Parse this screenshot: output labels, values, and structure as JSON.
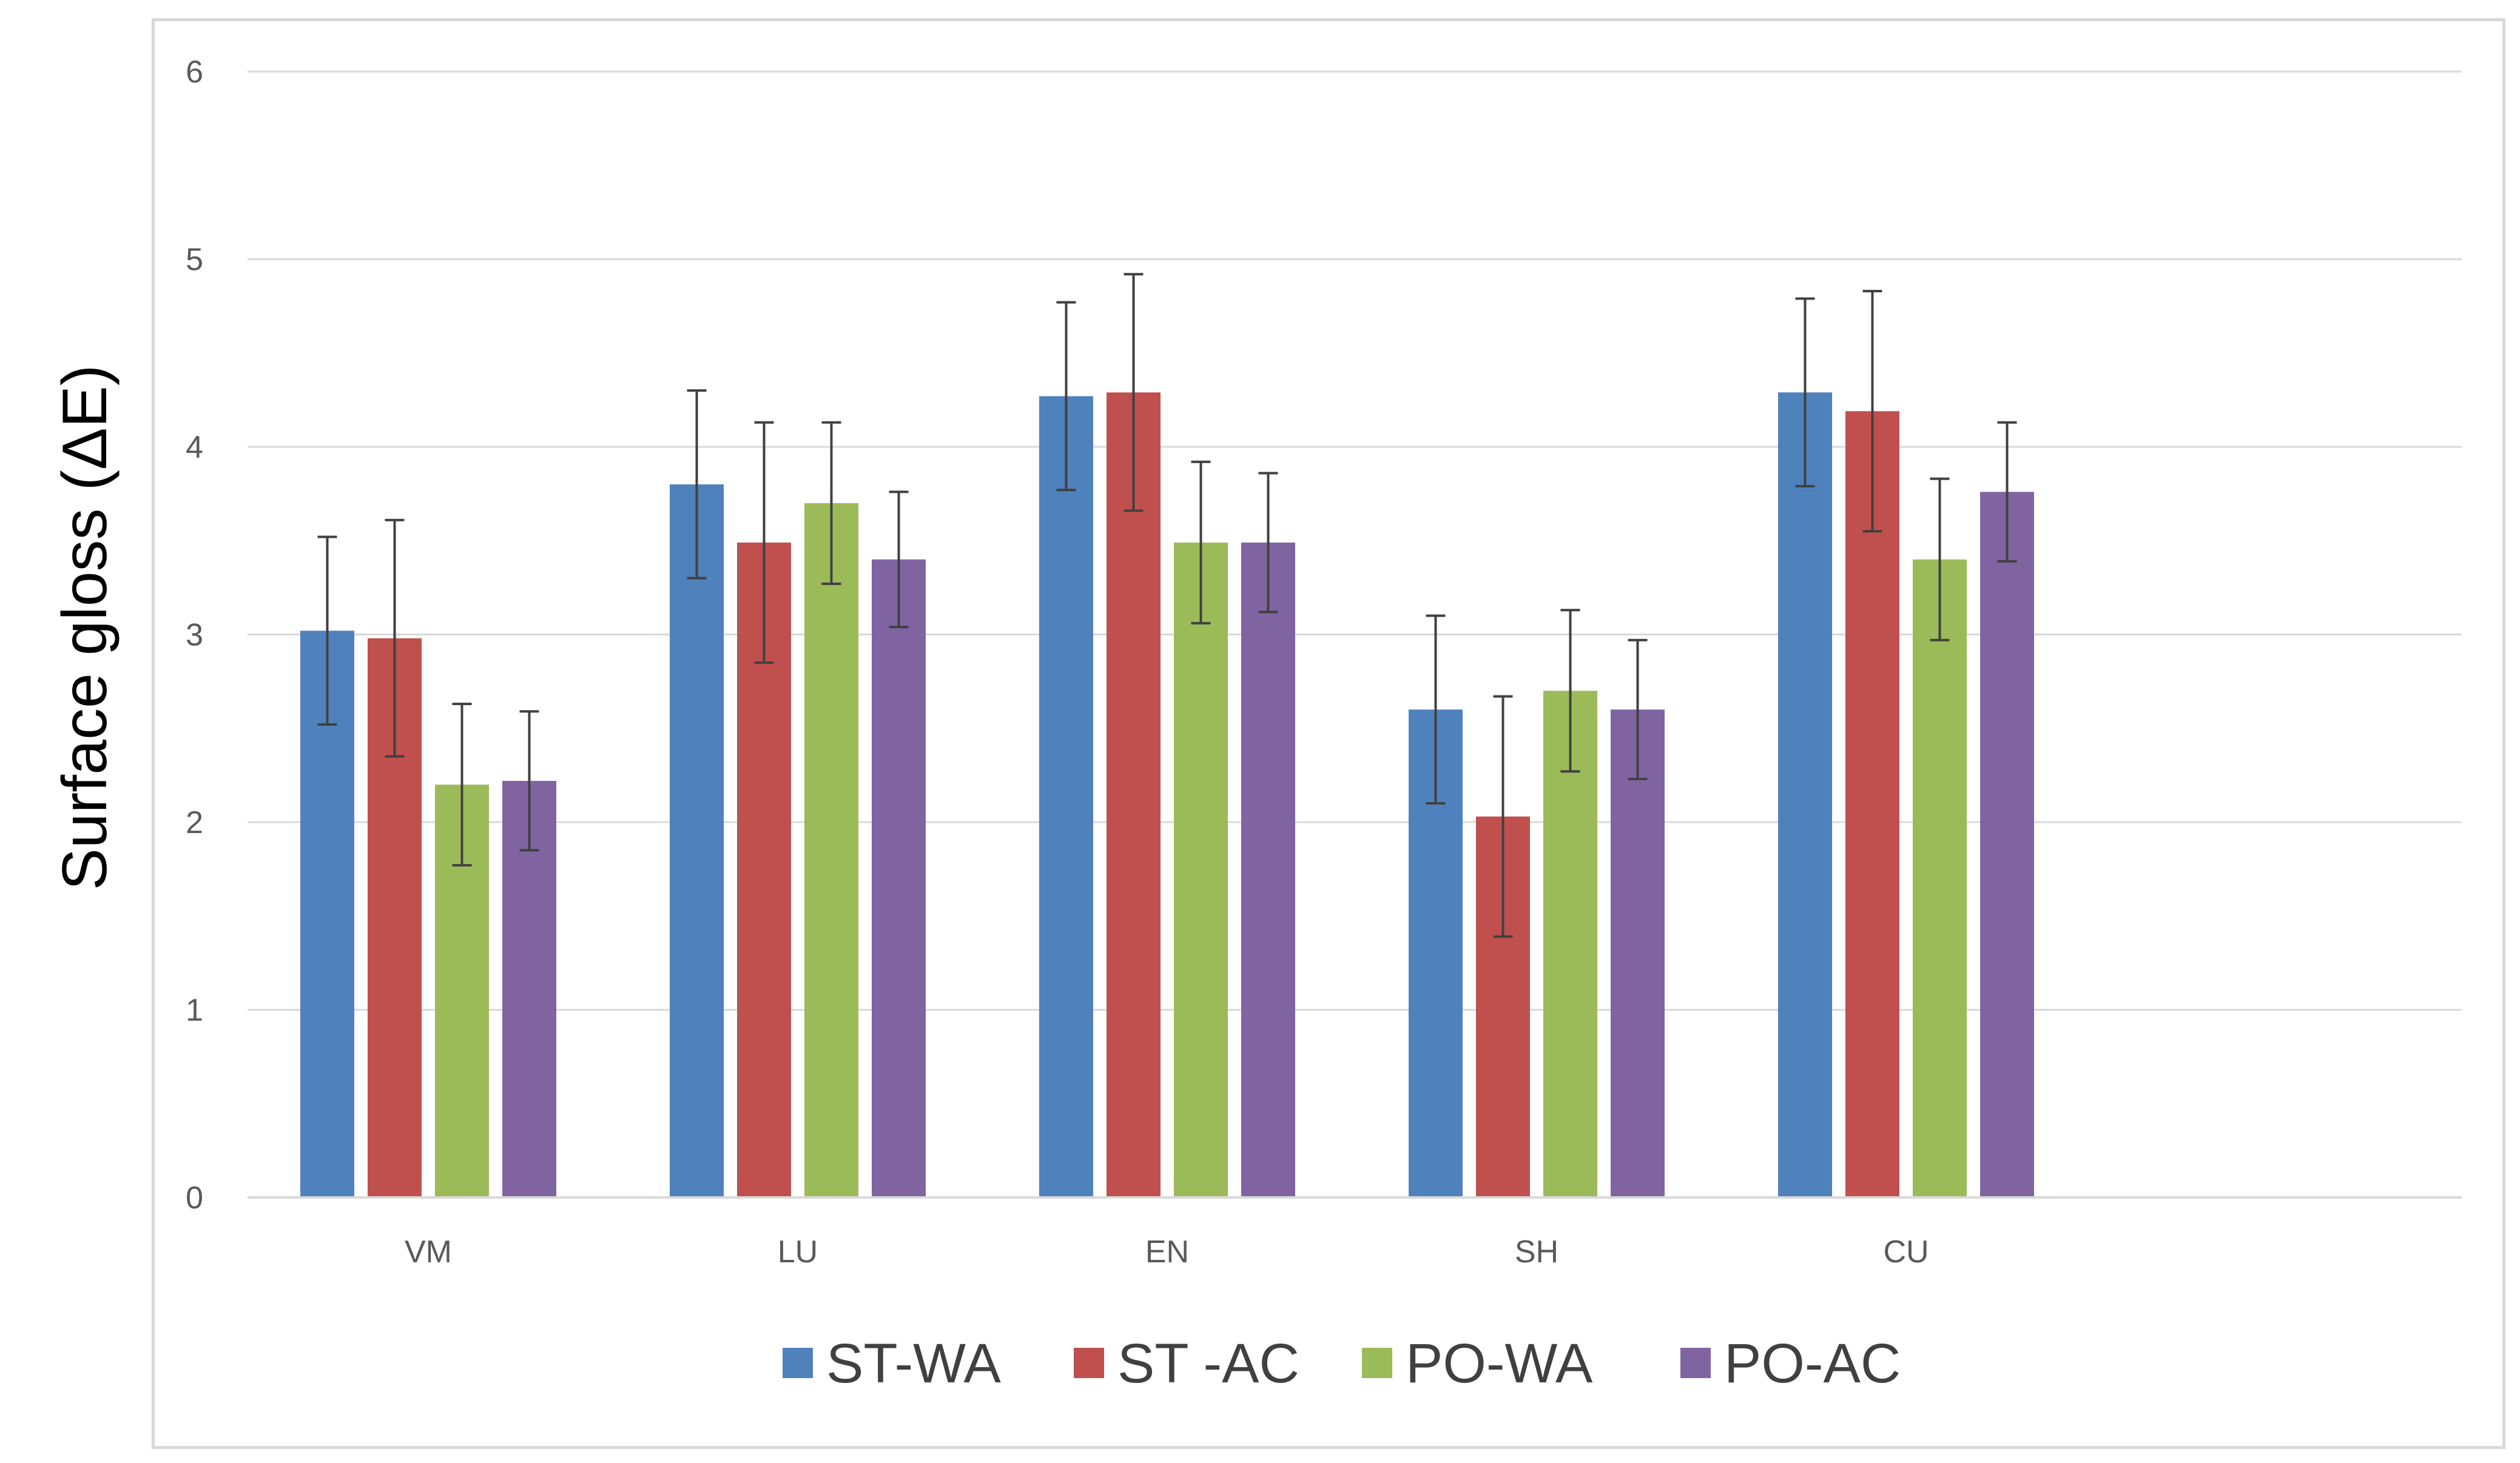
{
  "chart_data": {
    "type": "bar",
    "title": "",
    "xlabel": "",
    "ylabel": "Surface gloss (ΔE)",
    "ylim": [
      0,
      6
    ],
    "yticks": [
      "0",
      "1",
      "2",
      "3",
      "4",
      "5",
      "6"
    ],
    "grid": true,
    "legend_position": "bottom",
    "categories": [
      "VM",
      "LU",
      "EN",
      "SH",
      "CU"
    ],
    "series": [
      {
        "name": "ST-WA",
        "color": "#4f81bd",
        "values": [
          3.02,
          3.8,
          4.27,
          2.6,
          4.29
        ],
        "errors": [
          0.5,
          0.5,
          0.5,
          0.5,
          0.5
        ]
      },
      {
        "name": "ST -AC",
        "color": "#c0504d",
        "values": [
          2.98,
          3.49,
          4.29,
          2.03,
          4.19
        ],
        "errors": [
          0.63,
          0.64,
          0.63,
          0.64,
          0.64
        ]
      },
      {
        "name": "PO-WA",
        "color": "#9bbb59",
        "values": [
          2.2,
          3.7,
          3.49,
          2.7,
          3.4
        ],
        "errors": [
          0.43,
          0.43,
          0.43,
          0.43,
          0.43
        ]
      },
      {
        "name": "PO-AC",
        "color": "#8064a2",
        "values": [
          2.22,
          3.4,
          3.49,
          2.6,
          3.76
        ],
        "errors": [
          0.37,
          0.36,
          0.37,
          0.37,
          0.37
        ]
      }
    ]
  }
}
